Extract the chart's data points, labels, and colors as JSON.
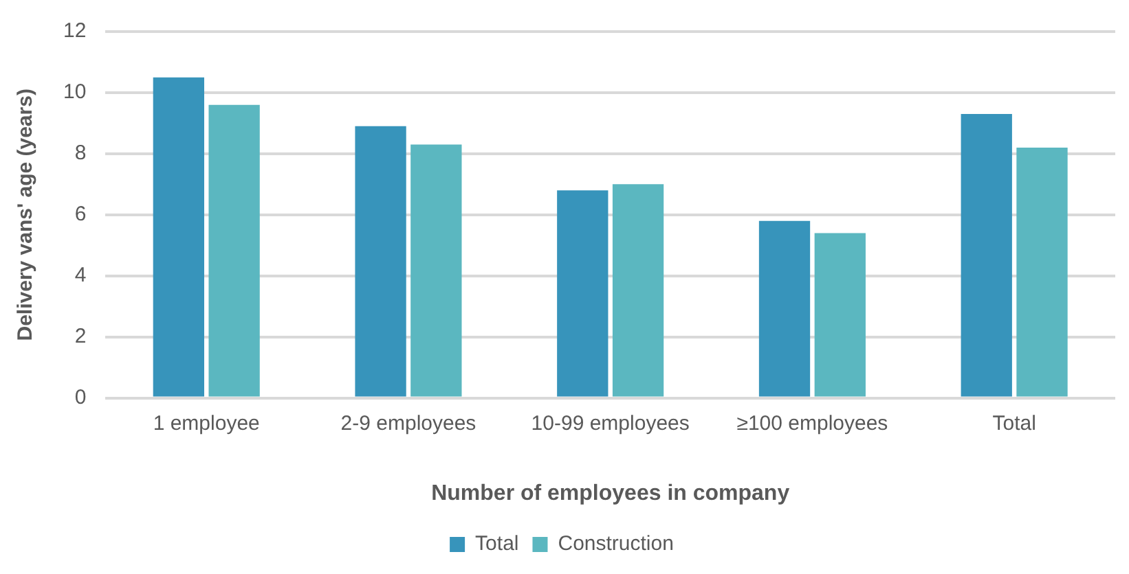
{
  "chart_data": {
    "type": "bar",
    "xlabel": "Number of employees in company",
    "ylabel": "Delivery vans' age (years)",
    "categories": [
      "1 employee",
      "2-9 employees",
      "10-99 employees",
      "≥100 employees",
      "Total"
    ],
    "series": [
      {
        "name": "Total",
        "color": "#3794bb",
        "values": [
          10.5,
          8.9,
          6.8,
          5.8,
          9.3
        ]
      },
      {
        "name": "Construction",
        "color": "#5bb7c0",
        "values": [
          9.6,
          8.3,
          7.0,
          5.4,
          8.2
        ]
      }
    ],
    "ylim": [
      0,
      12
    ],
    "yticks": [
      0,
      2,
      4,
      6,
      8,
      10,
      12
    ],
    "grid": "y",
    "legend": "bottom"
  }
}
